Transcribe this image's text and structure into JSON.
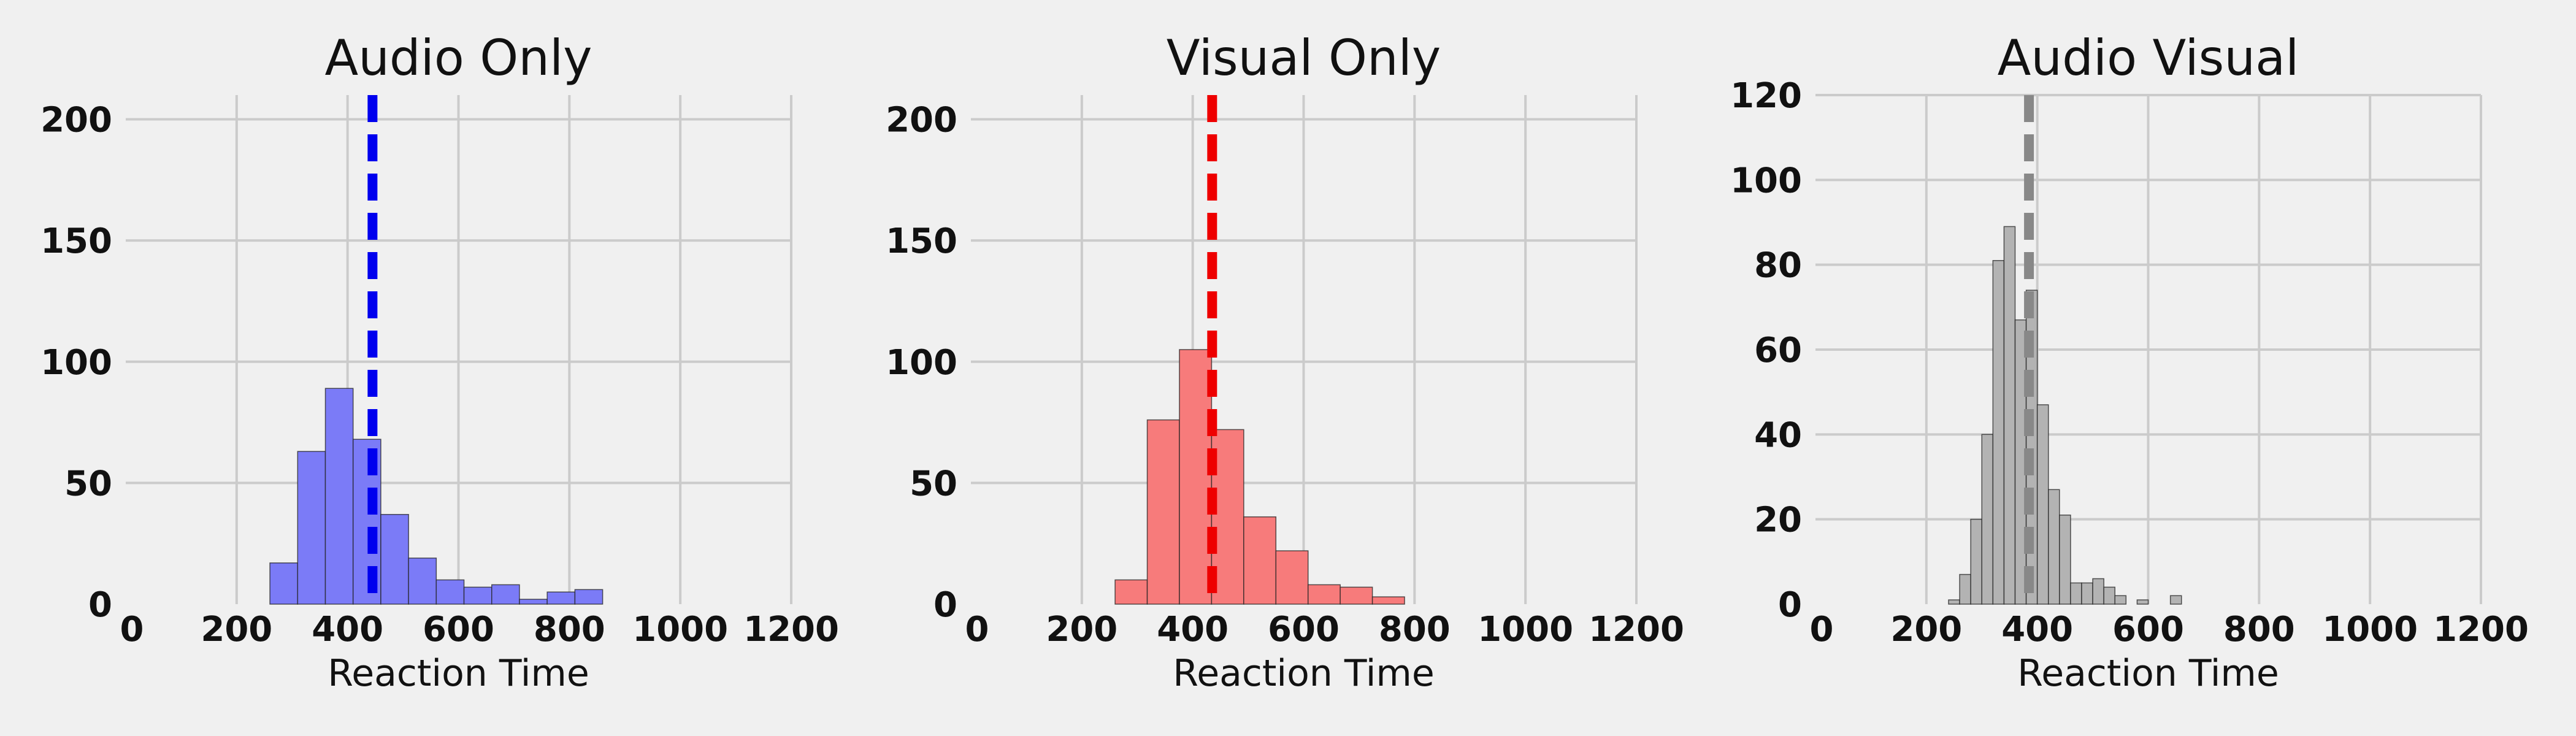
{
  "chart_data": [
    {
      "type": "bar",
      "subtype": "histogram",
      "title": "Audio Only",
      "xlabel": "Reaction Time",
      "ylabel": "",
      "xlim": [
        0,
        1200
      ],
      "ylim": [
        0,
        210
      ],
      "xticks": [
        0,
        200,
        400,
        600,
        800,
        1000,
        1200
      ],
      "yticks": [
        0,
        50,
        100,
        150,
        200
      ],
      "grid": true,
      "color": "#7b7bf7",
      "mean_line_color": "#0000ee",
      "mean": 445,
      "bins": [
        {
          "x0": 260,
          "x1": 310,
          "count": 17
        },
        {
          "x0": 310,
          "x1": 360,
          "count": 63
        },
        {
          "x0": 360,
          "x1": 410,
          "count": 89
        },
        {
          "x0": 410,
          "x1": 460,
          "count": 68
        },
        {
          "x0": 460,
          "x1": 510,
          "count": 37
        },
        {
          "x0": 510,
          "x1": 560,
          "count": 19
        },
        {
          "x0": 560,
          "x1": 610,
          "count": 10
        },
        {
          "x0": 610,
          "x1": 660,
          "count": 7
        },
        {
          "x0": 660,
          "x1": 710,
          "count": 8
        },
        {
          "x0": 710,
          "x1": 760,
          "count": 2
        },
        {
          "x0": 760,
          "x1": 810,
          "count": 5
        },
        {
          "x0": 810,
          "x1": 860,
          "count": 6
        }
      ]
    },
    {
      "type": "bar",
      "subtype": "histogram",
      "title": "Visual Only",
      "xlabel": "Reaction Time",
      "ylabel": "",
      "xlim": [
        0,
        1200
      ],
      "ylim": [
        0,
        210
      ],
      "xticks": [
        0,
        200,
        400,
        600,
        800,
        1000,
        1200
      ],
      "yticks": [
        0,
        50,
        100,
        150,
        200
      ],
      "grid": true,
      "color": "#f77b7b",
      "mean_line_color": "#ee0000",
      "mean": 435,
      "bins": [
        {
          "x0": 260,
          "x1": 318,
          "count": 10
        },
        {
          "x0": 318,
          "x1": 376,
          "count": 76
        },
        {
          "x0": 376,
          "x1": 434,
          "count": 105
        },
        {
          "x0": 434,
          "x1": 492,
          "count": 72
        },
        {
          "x0": 492,
          "x1": 550,
          "count": 36
        },
        {
          "x0": 550,
          "x1": 608,
          "count": 22
        },
        {
          "x0": 608,
          "x1": 666,
          "count": 8
        },
        {
          "x0": 666,
          "x1": 724,
          "count": 7
        },
        {
          "x0": 724,
          "x1": 782,
          "count": 3
        }
      ]
    },
    {
      "type": "bar",
      "subtype": "histogram",
      "title": "Audio Visual",
      "xlabel": "Reaction Time",
      "ylabel": "",
      "xlim": [
        0,
        1200
      ],
      "ylim": [
        0,
        120
      ],
      "xticks": [
        0,
        200,
        400,
        600,
        800,
        1000,
        1200
      ],
      "yticks": [
        0,
        20,
        40,
        60,
        80,
        100,
        120
      ],
      "grid": true,
      "color": "#b3b3b3",
      "mean_line_color": "#888888",
      "mean": 385,
      "bins": [
        {
          "x0": 240,
          "x1": 260,
          "count": 1
        },
        {
          "x0": 260,
          "x1": 280,
          "count": 7
        },
        {
          "x0": 280,
          "x1": 300,
          "count": 20
        },
        {
          "x0": 300,
          "x1": 320,
          "count": 40
        },
        {
          "x0": 320,
          "x1": 340,
          "count": 81
        },
        {
          "x0": 340,
          "x1": 360,
          "count": 89
        },
        {
          "x0": 360,
          "x1": 380,
          "count": 67
        },
        {
          "x0": 380,
          "x1": 400,
          "count": 74
        },
        {
          "x0": 400,
          "x1": 420,
          "count": 47
        },
        {
          "x0": 420,
          "x1": 440,
          "count": 27
        },
        {
          "x0": 440,
          "x1": 460,
          "count": 21
        },
        {
          "x0": 460,
          "x1": 480,
          "count": 5
        },
        {
          "x0": 480,
          "x1": 500,
          "count": 5
        },
        {
          "x0": 500,
          "x1": 520,
          "count": 6
        },
        {
          "x0": 520,
          "x1": 540,
          "count": 4
        },
        {
          "x0": 540,
          "x1": 560,
          "count": 2
        },
        {
          "x0": 580,
          "x1": 600,
          "count": 1
        },
        {
          "x0": 640,
          "x1": 660,
          "count": 2
        }
      ]
    }
  ]
}
